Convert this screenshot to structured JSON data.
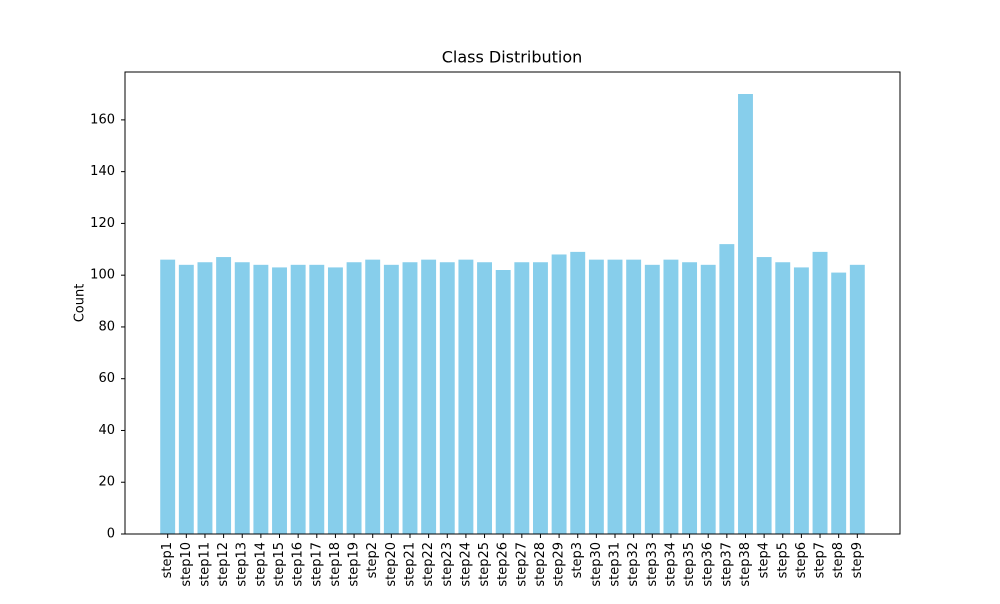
{
  "chart_data": {
    "type": "bar",
    "title": "Class Distribution",
    "y_label": "Count",
    "categories": [
      "step1",
      "step10",
      "step11",
      "step12",
      "step13",
      "step14",
      "step15",
      "step16",
      "step17",
      "step18",
      "step19",
      "step2",
      "step20",
      "step21",
      "step22",
      "step23",
      "step24",
      "step25",
      "step26",
      "step27",
      "step28",
      "step29",
      "step3",
      "step30",
      "step31",
      "step32",
      "step33",
      "step34",
      "step35",
      "step36",
      "step37",
      "step38",
      "step4",
      "step5",
      "step6",
      "step7",
      "step8",
      "step9"
    ],
    "values": [
      106,
      104,
      105,
      107,
      105,
      104,
      103,
      104,
      104,
      103,
      105,
      106,
      104,
      105,
      106,
      105,
      106,
      105,
      102,
      105,
      105,
      108,
      109,
      106,
      106,
      106,
      104,
      106,
      105,
      104,
      112,
      170,
      107,
      105,
      103,
      109,
      101,
      104
    ],
    "color": "#87ceeb",
    "ylim": [
      0,
      178.5
    ],
    "yticks": [
      0,
      20,
      40,
      60,
      80,
      100,
      120,
      140,
      160
    ],
    "grid": false
  }
}
